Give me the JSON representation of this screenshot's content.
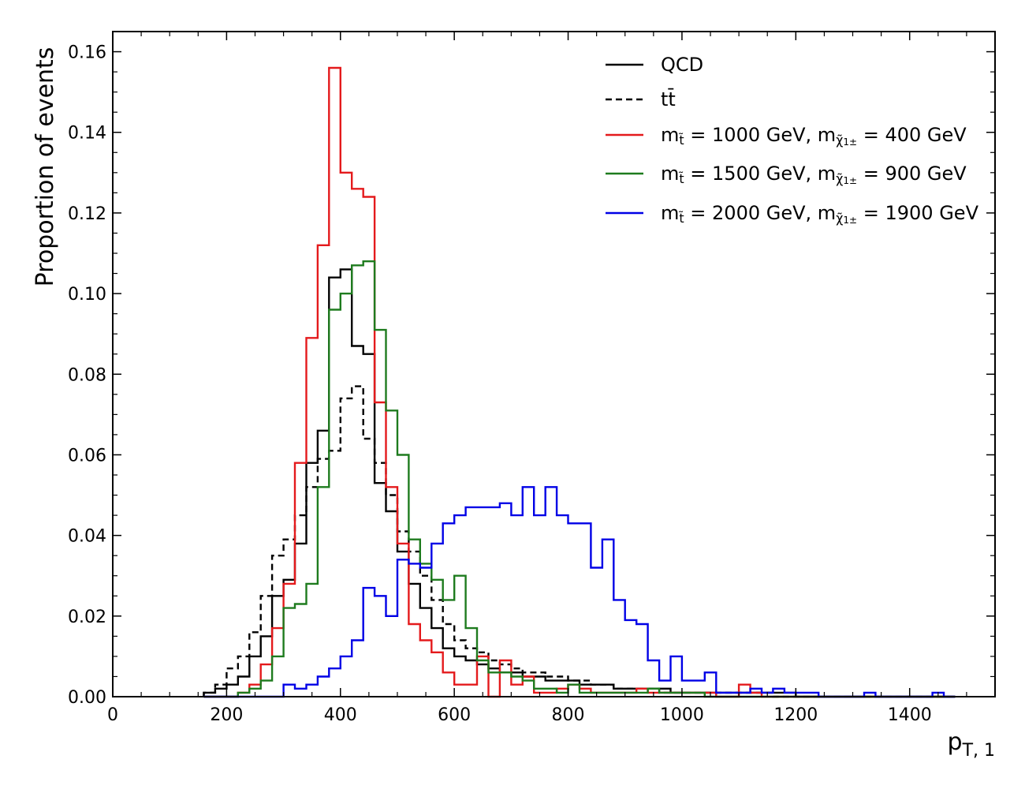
{
  "chart_data": {
    "type": "histogram",
    "title": "",
    "xlabel": "p",
    "xlabel_sub": "T, 1",
    "ylabel": "Proportion of events",
    "xlim": [
      0,
      1550
    ],
    "ylim": [
      0,
      0.165
    ],
    "xticks": [
      0,
      200,
      400,
      600,
      800,
      1000,
      1200,
      1400
    ],
    "xtick_labels": [
      "0",
      "200",
      "400",
      "600",
      "800",
      "1000",
      "1200",
      "1400"
    ],
    "yticks": [
      0,
      0.02,
      0.04,
      0.06,
      0.08,
      0.1,
      0.12,
      0.14,
      0.16
    ],
    "ytick_labels": [
      "0.00",
      "0.02",
      "0.04",
      "0.06",
      "0.08",
      "0.10",
      "0.12",
      "0.14",
      "0.16"
    ],
    "legend_position": "top-right",
    "bin_width": 20,
    "bin_start": 160,
    "series": [
      {
        "name": "QCD",
        "label_parts": [
          [
            "main",
            "QCD"
          ]
        ],
        "color": "#000000",
        "style": "solid",
        "values": [
          0.001,
          0.002,
          0.003,
          0.005,
          0.01,
          0.015,
          0.025,
          0.029,
          0.038,
          0.058,
          0.066,
          0.104,
          0.106,
          0.087,
          0.085,
          0.053,
          0.046,
          0.036,
          0.028,
          0.022,
          0.017,
          0.012,
          0.01,
          0.009,
          0.008,
          0.007,
          0.006,
          0.006,
          0.005,
          0.005,
          0.004,
          0.004,
          0.004,
          0.003,
          0.003,
          0.003,
          0.002,
          0.002,
          0.002,
          0.002,
          0.002,
          0.001,
          0.001,
          0.001,
          0.001,
          0.001,
          0.001,
          0.001,
          0.001,
          0.001,
          0.001,
          0.001,
          0.0,
          0.0,
          0.0,
          0.0,
          0.0,
          0.0,
          0.0,
          0.0,
          0.0,
          0.0,
          0.0,
          0.0,
          0.0,
          0.0
        ]
      },
      {
        "name": "tt̄",
        "label_parts": [
          [
            "main",
            "t"
          ],
          [
            "main",
            "t̄"
          ]
        ],
        "color": "#000000",
        "style": "dashed",
        "values": [
          0.001,
          0.003,
          0.007,
          0.01,
          0.016,
          0.025,
          0.035,
          0.039,
          0.045,
          0.052,
          0.059,
          0.061,
          0.074,
          0.077,
          0.064,
          0.058,
          0.05,
          0.041,
          0.036,
          0.03,
          0.024,
          0.018,
          0.014,
          0.012,
          0.011,
          0.009,
          0.008,
          0.007,
          0.006,
          0.006,
          0.005,
          0.005,
          0.004,
          0.004,
          0.003,
          0.003,
          0.002,
          0.002,
          0.002,
          0.002,
          0.001,
          0.001,
          0.001,
          0.001,
          0.001,
          0.001,
          0.001,
          0.001,
          0.001,
          0.001,
          0.0,
          0.0,
          0.0,
          0.0,
          0.0,
          0.0,
          0.0,
          0.0,
          0.0,
          0.0,
          0.0,
          0.0,
          0.0,
          0.0,
          0.0,
          0.0
        ]
      },
      {
        "name": "m_t̃ = 1000 GeV, m_χ̃1± = 400 GeV",
        "label_parts": [
          [
            "main",
            "m"
          ],
          [
            "sub",
            "t̃"
          ],
          [
            "main",
            " = 1000 GeV, m"
          ],
          [
            "sub",
            "χ̃"
          ],
          [
            "subsub",
            "1±"
          ],
          [
            "main",
            " = 400 GeV"
          ]
        ],
        "color": "#e41a1c",
        "style": "solid",
        "values": [
          0.0,
          0.0,
          0.0,
          0.001,
          0.003,
          0.008,
          0.017,
          0.028,
          0.058,
          0.089,
          0.112,
          0.156,
          0.13,
          0.126,
          0.124,
          0.073,
          0.052,
          0.038,
          0.018,
          0.014,
          0.011,
          0.006,
          0.003,
          0.003,
          0.01,
          0.0,
          0.009,
          0.003,
          0.005,
          0.001,
          0.001,
          0.002,
          0.003,
          0.002,
          0.001,
          0.001,
          0.001,
          0.001,
          0.002,
          0.001,
          0.001,
          0.001,
          0.001,
          0.001,
          0.001,
          0.0,
          0.0,
          0.003,
          0.001,
          0.0,
          0.0,
          0.0,
          0.0,
          0.0,
          0.0,
          0.0,
          0.0,
          0.0,
          0.0,
          0.0,
          0.0,
          0.0,
          0.0,
          0.0,
          0.0,
          0.0
        ]
      },
      {
        "name": "m_t̃ = 1500 GeV, m_χ̃1± = 900 GeV",
        "label_parts": [
          [
            "main",
            "m"
          ],
          [
            "sub",
            "t̃"
          ],
          [
            "main",
            " = 1500 GeV, m"
          ],
          [
            "sub",
            "χ̃"
          ],
          [
            "subsub",
            "1±"
          ],
          [
            "main",
            " = 900 GeV"
          ]
        ],
        "color": "#1e7b1e",
        "style": "solid",
        "values": [
          0.0,
          0.0,
          0.0,
          0.001,
          0.002,
          0.004,
          0.01,
          0.022,
          0.023,
          0.028,
          0.052,
          0.096,
          0.1,
          0.107,
          0.108,
          0.091,
          0.071,
          0.06,
          0.039,
          0.033,
          0.029,
          0.024,
          0.03,
          0.017,
          0.009,
          0.006,
          0.006,
          0.005,
          0.004,
          0.002,
          0.002,
          0.001,
          0.003,
          0.001,
          0.001,
          0.001,
          0.001,
          0.001,
          0.001,
          0.002,
          0.001,
          0.001,
          0.001,
          0.001,
          0.0,
          0.0,
          0.0,
          0.0,
          0.0,
          0.0,
          0.0,
          0.0,
          0.0,
          0.0,
          0.0,
          0.0,
          0.0,
          0.0,
          0.0,
          0.0,
          0.0,
          0.0,
          0.0,
          0.0,
          0.0,
          0.0
        ]
      },
      {
        "name": "m_t̃ = 2000 GeV, m_χ̃1± = 1900 GeV",
        "label_parts": [
          [
            "main",
            "m"
          ],
          [
            "sub",
            "t̃"
          ],
          [
            "main",
            " = 2000 GeV, m"
          ],
          [
            "sub",
            "χ̃"
          ],
          [
            "subsub",
            "1±"
          ],
          [
            "main",
            " = 1900 GeV"
          ]
        ],
        "color": "#0000e6",
        "style": "solid",
        "values": [
          0.0,
          0.0,
          0.0,
          0.0,
          0.0,
          0.0,
          0.0,
          0.003,
          0.002,
          0.003,
          0.005,
          0.007,
          0.01,
          0.014,
          0.027,
          0.025,
          0.02,
          0.034,
          0.033,
          0.032,
          0.038,
          0.043,
          0.045,
          0.047,
          0.047,
          0.047,
          0.048,
          0.045,
          0.052,
          0.045,
          0.052,
          0.045,
          0.043,
          0.043,
          0.032,
          0.039,
          0.024,
          0.019,
          0.018,
          0.009,
          0.004,
          0.01,
          0.004,
          0.004,
          0.006,
          0.001,
          0.001,
          0.001,
          0.002,
          0.001,
          0.002,
          0.001,
          0.001,
          0.001,
          0.0,
          0.0,
          0.0,
          0.0,
          0.001,
          0.0,
          0.0,
          0.0,
          0.0,
          0.0,
          0.001,
          0.0
        ]
      }
    ]
  }
}
